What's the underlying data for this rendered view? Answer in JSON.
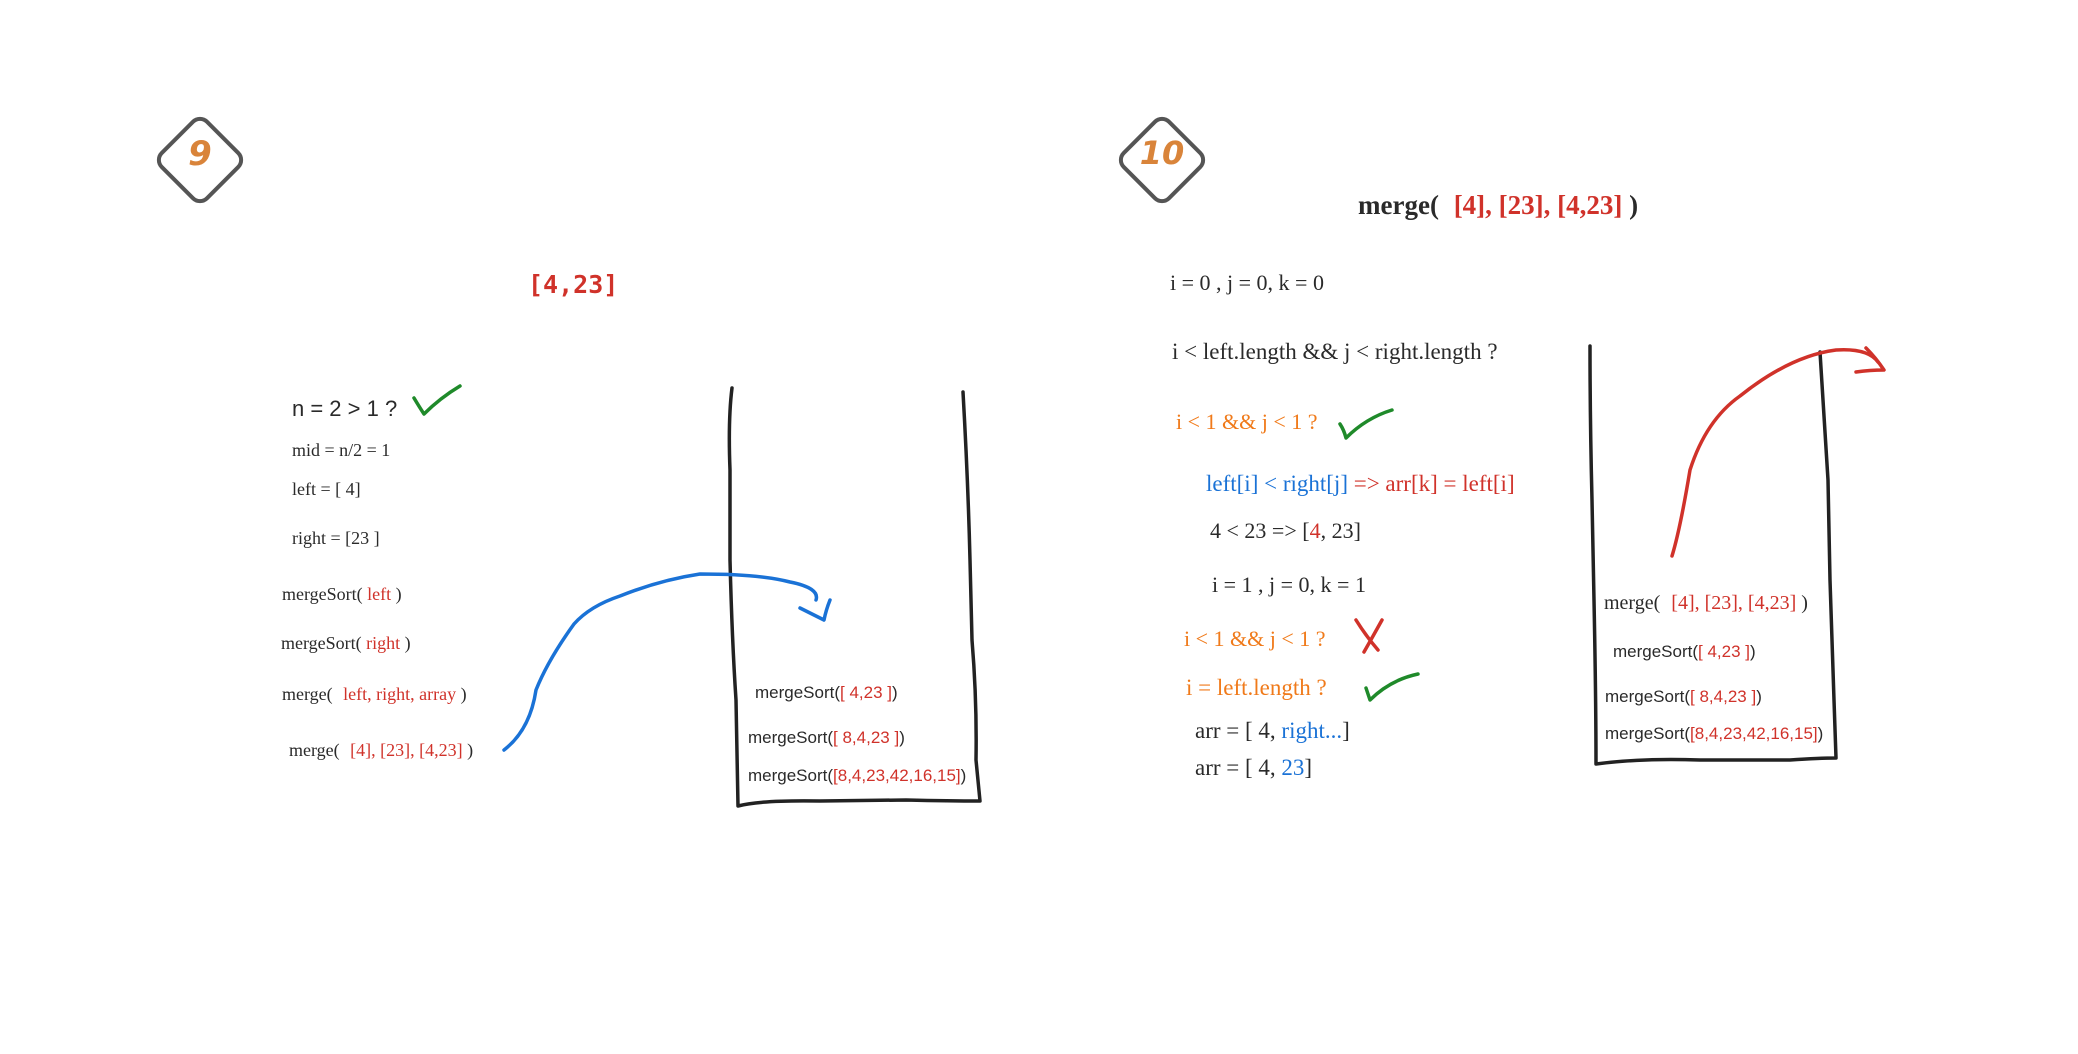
{
  "colors": {
    "text": "#2a2a2a",
    "red": "#d0322a",
    "orange": "#f07a1a",
    "blue": "#1a72d6",
    "green": "#1f8a2a",
    "badge": "#d9843a",
    "stroke": "#222222"
  },
  "step9": {
    "badge": "9",
    "array": "[4,23]",
    "lines": {
      "n_check": "n = 2 > 1 ?",
      "mid": "mid = n/2 = 1",
      "left": "left = [ 4]",
      "right": "right = [23 ]",
      "ms_left_fn": "mergeSort(",
      "ms_left_arg": "left",
      "ms_left_close": ")",
      "ms_right_fn": "mergeSort(",
      "ms_right_arg": "right",
      "ms_right_close": ")",
      "merge_fn": "merge(",
      "merge_args": "left, right, array",
      "merge_close": ")",
      "merge2_fn": "merge(",
      "merge2_args": "[4], [23], [4,23]",
      "merge2_close": ")"
    },
    "stack": [
      {
        "fn": "mergeSort(",
        "arg": "[ 4,23 ]",
        "close": ")"
      },
      {
        "fn": "mergeSort(",
        "arg": "[ 8,4,23 ]",
        "close": ")"
      },
      {
        "fn": "mergeSort(",
        "arg": "[8,4,23,42,16,15]",
        "close": ")"
      }
    ]
  },
  "step10": {
    "badge": "10",
    "title_fn": "merge(",
    "title_args": "[4], [23], [4,23]",
    "title_close": ")",
    "lines": {
      "init": "i = 0 , j = 0, k = 0",
      "loop_cond": "i < left.length && j < right.length ?",
      "cond1": "i < 1 && j < 1 ?",
      "cmp_a": "left[i] < right[j]",
      "cmp_b": "=> arr[k] = left[i]",
      "res_a": "4 < 23 => [",
      "res_b": "4",
      "res_c": ", 23]",
      "update": "i = 1 , j = 0, k = 1",
      "cond2": "i < 1 && j < 1 ?",
      "cond3": "i  = left.length ?",
      "arr1_a": "arr = [ 4,",
      "arr1_b": "right...",
      "arr1_c": "]",
      "arr2_a": "arr = [ 4,",
      "arr2_b": "23",
      "arr2_c": "]"
    },
    "stack": [
      {
        "fn": "merge(",
        "arg": "[4], [23], [4,23]",
        "close": ")"
      },
      {
        "fn": "mergeSort(",
        "arg": "[ 4,23 ]",
        "close": ")"
      },
      {
        "fn": "mergeSort(",
        "arg": "[ 8,4,23 ]",
        "close": ")"
      },
      {
        "fn": "mergeSort(",
        "arg": "[8,4,23,42,16,15]",
        "close": ")"
      }
    ]
  }
}
